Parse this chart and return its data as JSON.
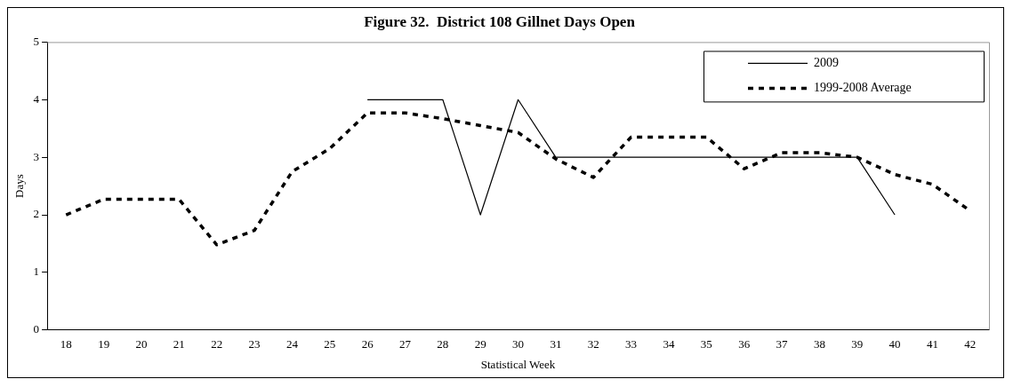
{
  "chart_data": {
    "type": "line",
    "title": "Figure 32.  District 108 Gillnet Days Open",
    "xlabel": "Statistical Week",
    "ylabel": "Days",
    "categories": [
      "18",
      "19",
      "20",
      "21",
      "22",
      "23",
      "24",
      "25",
      "26",
      "27",
      "28",
      "29",
      "30",
      "31",
      "32",
      "33",
      "34",
      "35",
      "36",
      "37",
      "38",
      "39",
      "40",
      "41",
      "42"
    ],
    "series": [
      {
        "name": "2009",
        "color": "#000000",
        "line_style": "solid",
        "values": [
          null,
          null,
          null,
          null,
          null,
          null,
          null,
          null,
          4,
          4,
          4,
          2,
          4,
          3,
          3,
          3,
          3,
          3,
          3,
          3,
          3,
          3,
          2,
          null,
          null
        ]
      },
      {
        "name": "1999-2008 Average",
        "color": "#000000",
        "line_style": "dashed",
        "values": [
          2.0,
          2.27,
          2.27,
          2.27,
          1.48,
          1.73,
          2.75,
          3.15,
          3.77,
          3.77,
          3.67,
          3.55,
          3.43,
          2.97,
          2.65,
          3.35,
          3.35,
          3.35,
          2.8,
          3.08,
          3.08,
          3.0,
          2.7,
          2.53,
          2.07
        ]
      }
    ],
    "ylim": [
      0,
      5
    ],
    "yticks": [
      0,
      1,
      2,
      3,
      4,
      5
    ],
    "grid": false,
    "legend": "top right",
    "marker": "none"
  }
}
